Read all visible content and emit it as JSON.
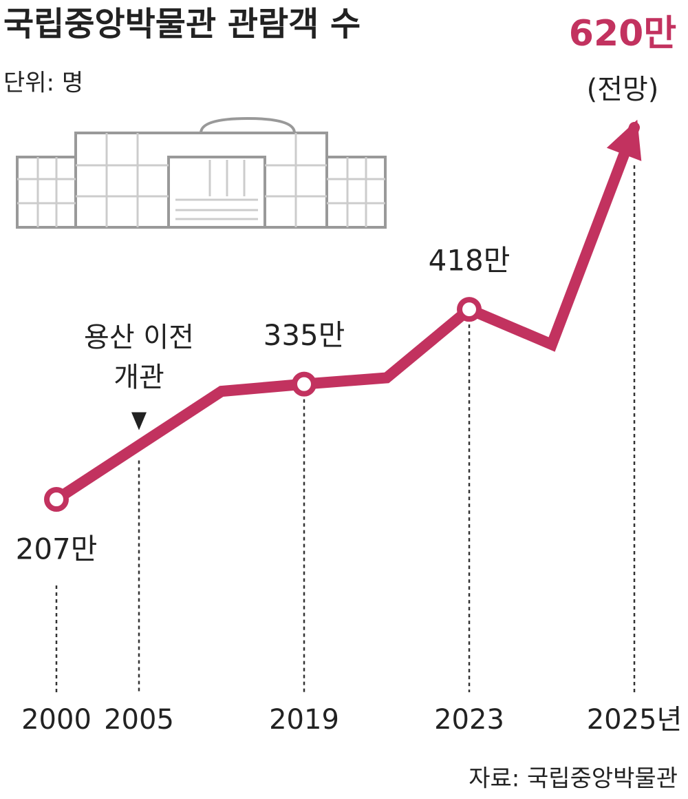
{
  "chart_data": {
    "type": "line",
    "title": "국립중앙박물관 관람객 수",
    "subtitle": "단위: 명",
    "source": "자료: 국립중앙박물관",
    "categories": [
      "2000",
      "2005",
      null,
      "2019",
      null,
      "2023",
      null,
      "2025년"
    ],
    "values": [
      207,
      267,
      327,
      335,
      342,
      418,
      379,
      620
    ],
    "value_labels": [
      "207만",
      null,
      null,
      "335만",
      null,
      "418만",
      null,
      "620만"
    ],
    "color": "#c2325f",
    "annotation": [
      "용산 이전",
      "개관"
    ],
    "forecast_label": "(전망)"
  }
}
